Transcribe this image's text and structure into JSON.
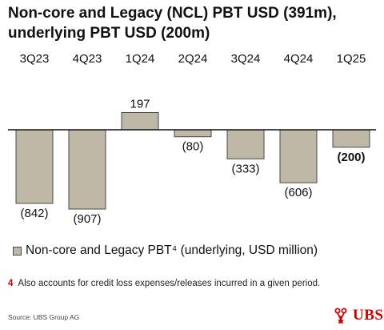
{
  "title_line1": "Non-core and Legacy (NCL) PBT USD (391m),",
  "title_line2": "underlying PBT USD (200m)",
  "chart_data": {
    "type": "bar",
    "categories": [
      "3Q23",
      "4Q23",
      "1Q24",
      "2Q24",
      "3Q24",
      "4Q24",
      "1Q25"
    ],
    "series": [
      {
        "name": "Non-core and Legacy PBT⁴ (underlying, USD million)",
        "values": [
          -842,
          -907,
          197,
          -80,
          -333,
          -606,
          -200
        ]
      }
    ],
    "value_labels": [
      "(842)",
      "(907)",
      "197",
      "(80)",
      "(333)",
      "(606)",
      "(200)"
    ],
    "highlighted_index": 6,
    "ylim": [
      -1000,
      250
    ],
    "grid": false,
    "legend_position": "bottom-left",
    "colors": {
      "bar": "#bfb8a6",
      "bar_stroke": "#4a4a4a",
      "axis": "#111111"
    }
  },
  "legend": {
    "label": "Non-core and Legacy PBT⁴ (underlying, USD million)"
  },
  "footnote": {
    "number": "4",
    "text": "Also accounts for credit loss expenses/releases incurred in a given period."
  },
  "source": "Source: UBS Group AG",
  "logo": {
    "text": "UBS",
    "icon": "ubs-keys-icon",
    "color": "#cc0000"
  }
}
